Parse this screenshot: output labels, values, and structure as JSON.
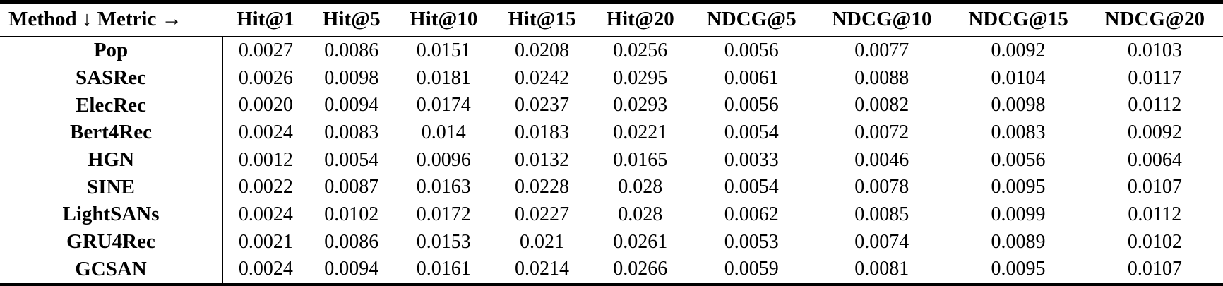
{
  "table": {
    "corner_header": "Method ↓ Metric →",
    "metric_headers": [
      "Hit@1",
      "Hit@5",
      "Hit@10",
      "Hit@15",
      "Hit@20",
      "NDCG@5",
      "NDCG@10",
      "NDCG@15",
      "NDCG@20"
    ],
    "rows": [
      {
        "method": "Pop",
        "values": [
          "0.0027",
          "0.0086",
          "0.0151",
          "0.0208",
          "0.0256",
          "0.0056",
          "0.0077",
          "0.0092",
          "0.0103"
        ]
      },
      {
        "method": "SASRec",
        "values": [
          "0.0026",
          "0.0098",
          "0.0181",
          "0.0242",
          "0.0295",
          "0.0061",
          "0.0088",
          "0.0104",
          "0.0117"
        ]
      },
      {
        "method": "ElecRec",
        "values": [
          "0.0020",
          "0.0094",
          "0.0174",
          "0.0237",
          "0.0293",
          "0.0056",
          "0.0082",
          "0.0098",
          "0.0112"
        ]
      },
      {
        "method": "Bert4Rec",
        "values": [
          "0.0024",
          "0.0083",
          "0.014",
          "0.0183",
          "0.0221",
          "0.0054",
          "0.0072",
          "0.0083",
          "0.0092"
        ]
      },
      {
        "method": "HGN",
        "values": [
          "0.0012",
          "0.0054",
          "0.0096",
          "0.0132",
          "0.0165",
          "0.0033",
          "0.0046",
          "0.0056",
          "0.0064"
        ]
      },
      {
        "method": "SINE",
        "values": [
          "0.0022",
          "0.0087",
          "0.0163",
          "0.0228",
          "0.028",
          "0.0054",
          "0.0078",
          "0.0095",
          "0.0107"
        ]
      },
      {
        "method": "LightSANs",
        "values": [
          "0.0024",
          "0.0102",
          "0.0172",
          "0.0227",
          "0.028",
          "0.0062",
          "0.0085",
          "0.0099",
          "0.0112"
        ]
      },
      {
        "method": "GRU4Rec",
        "values": [
          "0.0021",
          "0.0086",
          "0.0153",
          "0.021",
          "0.0261",
          "0.0053",
          "0.0074",
          "0.0089",
          "0.0102"
        ]
      },
      {
        "method": "GCSAN",
        "values": [
          "0.0024",
          "0.0094",
          "0.0161",
          "0.0214",
          "0.0266",
          "0.0059",
          "0.0081",
          "0.0095",
          "0.0107"
        ]
      }
    ],
    "colors": {
      "text": "#000000",
      "background": "#ffffff",
      "rule": "#000000"
    }
  }
}
